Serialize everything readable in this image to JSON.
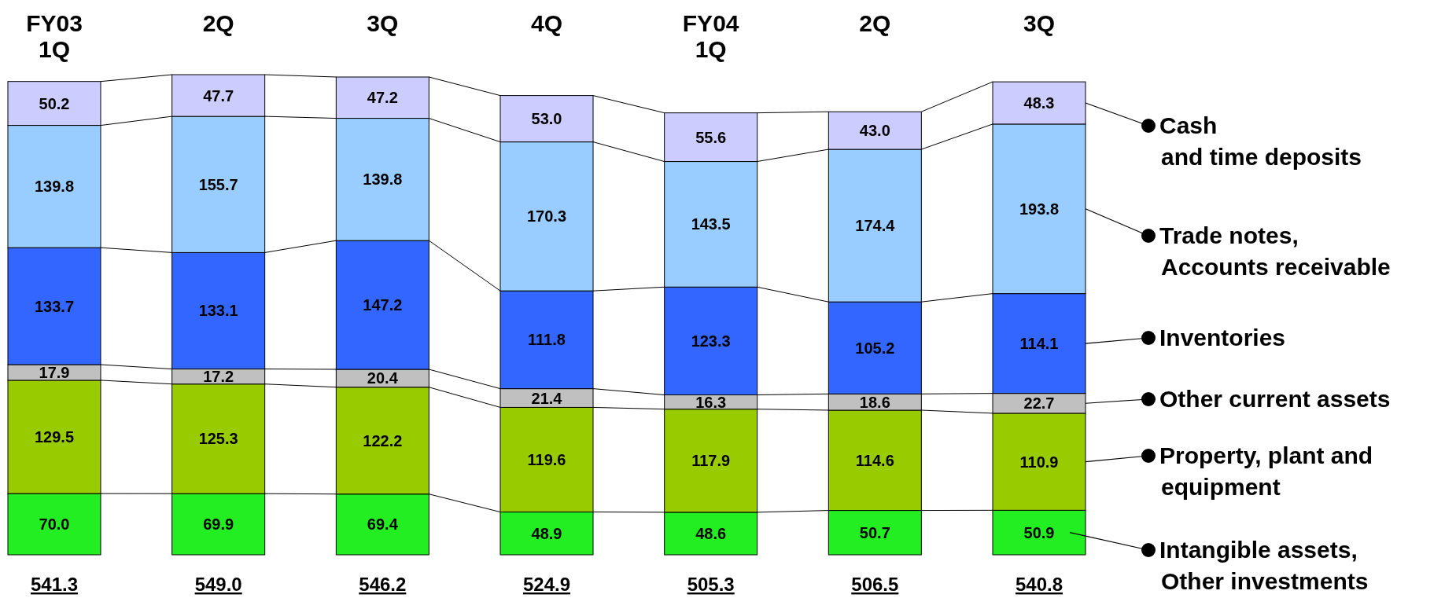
{
  "chart_data": {
    "type": "bar",
    "stacked": true,
    "legend": "right",
    "categories": [
      "FY03\n1Q",
      "2Q",
      "3Q",
      "4Q",
      "FY04\n1Q",
      "2Q",
      "3Q"
    ],
    "series": [
      {
        "name": "Intangible assets,\nOther investments",
        "color": "#22ee22",
        "values": [
          70.0,
          69.9,
          69.4,
          48.9,
          48.6,
          50.7,
          50.9
        ],
        "value_labels": [
          "70.0",
          "69.9",
          "69.4",
          "48.9",
          "48.6",
          "50.7",
          "50.9"
        ]
      },
      {
        "name": "Property, plant and\nequipment",
        "color": "#99cc00",
        "values": [
          129.5,
          125.3,
          122.2,
          119.6,
          117.9,
          114.6,
          110.9
        ],
        "value_labels": [
          "129.5",
          "125.3",
          "122.2",
          "119.6",
          "117.9",
          "114.6",
          "110.9"
        ]
      },
      {
        "name": "Other current assets",
        "color": "#c0c0c0",
        "values": [
          17.9,
          17.2,
          20.4,
          21.4,
          16.3,
          18.6,
          22.7
        ],
        "value_labels": [
          "17.9",
          "17.2",
          "20.4",
          "21.4",
          "16.3",
          "18.6",
          "22.7"
        ]
      },
      {
        "name": "Inventories",
        "color": "#3366ff",
        "values": [
          133.7,
          133.1,
          147.2,
          111.8,
          123.3,
          105.2,
          114.1
        ],
        "value_labels": [
          "133.7",
          "133.1",
          "147.2",
          "111.8",
          "123.3",
          "105.2",
          "114.1"
        ]
      },
      {
        "name": "Trade notes,\nAccounts receivable",
        "color": "#99ccff",
        "values": [
          139.8,
          155.7,
          139.8,
          170.3,
          143.5,
          174.4,
          193.8
        ],
        "value_labels": [
          "139.8",
          "155.7",
          "139.8",
          "170.3",
          "143.5",
          "174.4",
          "193.8"
        ]
      },
      {
        "name": "Cash\nand time deposits",
        "color": "#ccccff",
        "values": [
          50.2,
          47.7,
          47.2,
          53.0,
          55.6,
          43.0,
          48.3
        ],
        "value_labels": [
          "50.2",
          "47.7",
          "47.2",
          "53.0",
          "55.6",
          "43.0",
          "48.3"
        ]
      }
    ],
    "totals": [
      "541.3",
      "549.0",
      "546.2",
      "524.9",
      "505.3",
      "506.5",
      "540.8"
    ]
  }
}
